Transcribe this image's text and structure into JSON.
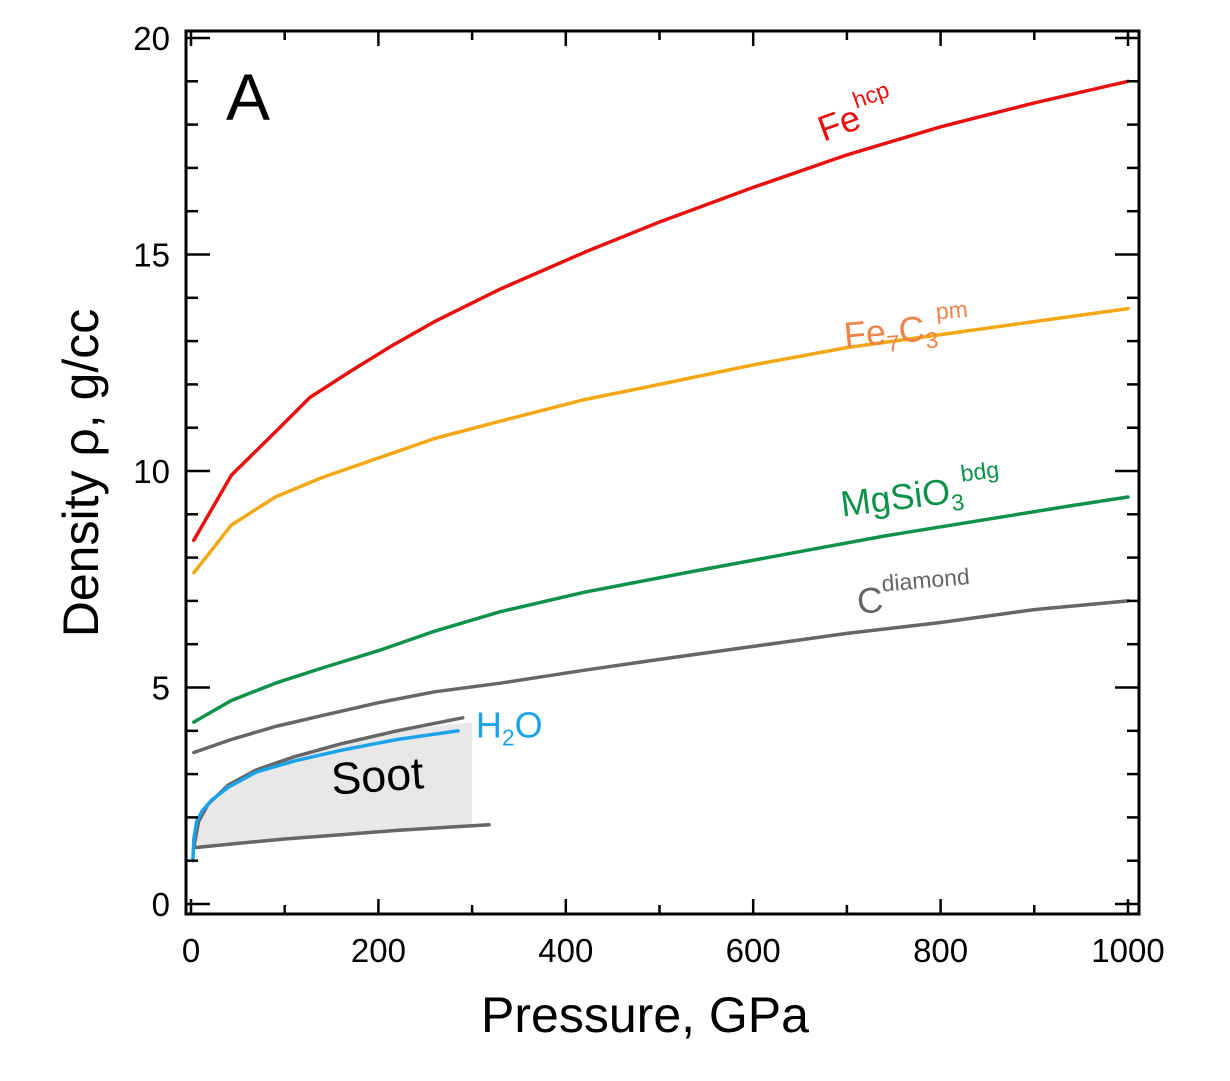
{
  "chart_data": {
    "type": "line",
    "panel_label": "A",
    "xlabel": "Pressure, GPa",
    "ylabel": "Density ρ,  g/cc",
    "xlim": [
      0,
      1000
    ],
    "ylim": [
      0,
      20
    ],
    "x_ticks": [
      0,
      200,
      400,
      600,
      800,
      1000
    ],
    "y_ticks": [
      0,
      5,
      10,
      15,
      20
    ],
    "grid": false,
    "series": [
      {
        "name": "Fe hcp",
        "label": {
          "base": "Fe",
          "sub": "",
          "post": "",
          "sup": "hcp",
          "anchor": [
            675,
            17.6
          ],
          "rotate": -20
        },
        "color": "#e8100e",
        "x": [
          3,
          43,
          90,
          127,
          170,
          215,
          260,
          330,
          420,
          500,
          600,
          700,
          800,
          900,
          1000
        ],
        "y": [
          8.4,
          9.9,
          10.9,
          11.7,
          12.3,
          12.9,
          13.45,
          14.2,
          15.05,
          15.75,
          16.55,
          17.3,
          17.95,
          18.5,
          19.0
        ]
      },
      {
        "name": "Fe7C3 pm",
        "label": {
          "base": "Fe",
          "sub": "7",
          "post": "C",
          "sub2": "3",
          "sup": "pm",
          "anchor": [
            698,
            12.85
          ],
          "rotate": -5
        },
        "color": "#f3a712",
        "x": [
          3,
          43,
          90,
          140,
          200,
          260,
          330,
          420,
          500,
          600,
          700,
          800,
          900,
          1000
        ],
        "y": [
          7.65,
          8.75,
          9.4,
          9.85,
          10.3,
          10.75,
          11.15,
          11.65,
          12.0,
          12.45,
          12.85,
          13.15,
          13.45,
          13.75
        ]
      },
      {
        "name": "MgSiO3 bdg",
        "label": {
          "base": "MgSiO",
          "sub": "3",
          "post": "",
          "sup": "bdg",
          "anchor": [
            695,
            8.95
          ],
          "rotate": -7
        },
        "color": "#0e914a",
        "x": [
          3,
          43,
          90,
          140,
          200,
          260,
          330,
          420,
          540,
          640,
          740,
          840,
          940,
          1000
        ],
        "y": [
          4.2,
          4.7,
          5.1,
          5.45,
          5.85,
          6.3,
          6.75,
          7.2,
          7.7,
          8.1,
          8.5,
          8.85,
          9.2,
          9.4
        ]
      },
      {
        "name": "C diamond",
        "label": {
          "base": "C",
          "sub": "",
          "post": "",
          "sup": "diamond",
          "anchor": [
            712,
            6.7
          ],
          "rotate": -5
        },
        "color": "#666666",
        "x": [
          3,
          43,
          90,
          140,
          200,
          260,
          330,
          420,
          500,
          600,
          700,
          800,
          900,
          1000
        ],
        "y": [
          3.5,
          3.8,
          4.1,
          4.35,
          4.65,
          4.9,
          5.1,
          5.4,
          5.65,
          5.95,
          6.25,
          6.5,
          6.8,
          7.0
        ]
      },
      {
        "name": "Soot upper bound",
        "label": null,
        "color": "#666666",
        "x": [
          3,
          8,
          18,
          40,
          70,
          110,
          160,
          220,
          290
        ],
        "y": [
          1.3,
          1.9,
          2.3,
          2.75,
          3.1,
          3.4,
          3.7,
          4.0,
          4.3
        ]
      },
      {
        "name": "Soot lower bound",
        "label": null,
        "color": "#666666",
        "x": [
          3,
          50,
          100,
          160,
          220,
          280,
          318
        ],
        "y": [
          1.3,
          1.4,
          1.5,
          1.6,
          1.7,
          1.78,
          1.83
        ]
      },
      {
        "name": "H2O",
        "label": {
          "base": "H",
          "sub": "2",
          "post": "O",
          "sup": "",
          "anchor": [
            304,
            3.85
          ],
          "rotate": 0
        },
        "color": "#1aa3e8",
        "x": [
          2,
          3,
          6,
          12,
          22,
          40,
          70,
          110,
          160,
          220,
          285
        ],
        "y": [
          1.0,
          1.5,
          1.9,
          2.15,
          2.4,
          2.7,
          3.05,
          3.3,
          3.55,
          3.8,
          4.0
        ]
      }
    ],
    "annotations": [
      {
        "text": "Soot",
        "anchor": [
          200,
          2.6
        ],
        "rotate": -4
      }
    ],
    "shaded_region": {
      "name": "Soot",
      "fill": "#e8e8e8",
      "upper_x": [
        3,
        8,
        18,
        40,
        70,
        110,
        160,
        220,
        300
      ],
      "upper_y": [
        1.3,
        1.9,
        2.3,
        2.75,
        3.1,
        3.4,
        3.7,
        4.0,
        4.2
      ],
      "lower_x": [
        300,
        220,
        160,
        100,
        50,
        3
      ],
      "lower_y": [
        1.8,
        1.72,
        1.62,
        1.52,
        1.42,
        1.3
      ]
    }
  }
}
